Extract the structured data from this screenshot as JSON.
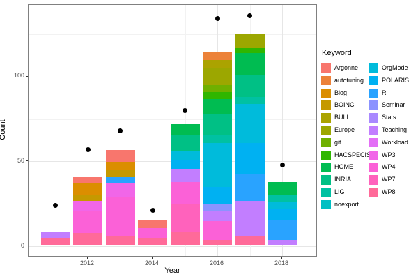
{
  "chart_data": {
    "type": "bar",
    "stacked": true,
    "title": "",
    "xlabel": "Year",
    "ylabel": "Count",
    "legend_title": "Keyword",
    "legend_position": "right",
    "grid": true,
    "x_ticks": [
      2012,
      2014,
      2016,
      2018
    ],
    "x_minor": [
      2011,
      2013,
      2015,
      2017
    ],
    "y_ticks": [
      0,
      50,
      100
    ],
    "y_minor": [
      25,
      75,
      125
    ],
    "xlim": [
      2010.5,
      2018.5
    ],
    "ylim": [
      -7,
      142
    ],
    "keywords": [
      {
        "name": "Argonne",
        "color": "#F8766D"
      },
      {
        "name": "autotuning",
        "color": "#EC8239"
      },
      {
        "name": "Blog",
        "color": "#DB8E00"
      },
      {
        "name": "BOINC",
        "color": "#C59900"
      },
      {
        "name": "BULL",
        "color": "#ABA300"
      },
      {
        "name": "Europe",
        "color": "#9CA700"
      },
      {
        "name": "git",
        "color": "#6FB000"
      },
      {
        "name": "HACSPECIS",
        "color": "#2FB600"
      },
      {
        "name": "HOME",
        "color": "#00BC51"
      },
      {
        "name": "INRIA",
        "color": "#00C085"
      },
      {
        "name": "LIG",
        "color": "#00C1A2"
      },
      {
        "name": "noexport",
        "color": "#00BFC3"
      },
      {
        "name": "OrgMode",
        "color": "#00BBDB"
      },
      {
        "name": "POLARIS",
        "color": "#00B1F2"
      },
      {
        "name": "R",
        "color": "#29A3FF"
      },
      {
        "name": "Seminar",
        "color": "#8B93FF"
      },
      {
        "name": "Stats",
        "color": "#A989FF"
      },
      {
        "name": "Teaching",
        "color": "#C27EFF"
      },
      {
        "name": "Workload",
        "color": "#E36EF6"
      },
      {
        "name": "WP3",
        "color": "#F166E8"
      },
      {
        "name": "WP4",
        "color": "#FB61D7"
      },
      {
        "name": "WP7",
        "color": "#FF62BC"
      },
      {
        "name": "WP8",
        "color": "#FF6A99"
      }
    ],
    "bars": [
      {
        "year": 2011,
        "total": 8,
        "segments": [
          {
            "keyword": "WP8",
            "value": 4
          },
          {
            "keyword": "Teaching",
            "value": 4
          }
        ]
      },
      {
        "year": 2012,
        "total": 40,
        "segments": [
          {
            "keyword": "WP8",
            "value": 7
          },
          {
            "keyword": "WP4",
            "value": 13
          },
          {
            "keyword": "WP3",
            "value": 6
          },
          {
            "keyword": "BOINC",
            "value": 3
          },
          {
            "keyword": "Blog",
            "value": 7
          },
          {
            "keyword": "Argonne",
            "value": 4
          }
        ]
      },
      {
        "year": 2013,
        "total": 56,
        "segments": [
          {
            "keyword": "WP8",
            "value": 5
          },
          {
            "keyword": "WP4",
            "value": 23
          },
          {
            "keyword": "WP3",
            "value": 8
          },
          {
            "keyword": "R",
            "value": 4
          },
          {
            "keyword": "BOINC",
            "value": 4
          },
          {
            "keyword": "Blog",
            "value": 5
          },
          {
            "keyword": "Argonne",
            "value": 7
          }
        ]
      },
      {
        "year": 2014,
        "total": 15,
        "segments": [
          {
            "keyword": "WP8",
            "value": 4
          },
          {
            "keyword": "WP4",
            "value": 6
          },
          {
            "keyword": "Argonne",
            "value": 5
          }
        ]
      },
      {
        "year": 2015,
        "total": 71,
        "segments": [
          {
            "keyword": "WP8",
            "value": 8
          },
          {
            "keyword": "WP7",
            "value": 16
          },
          {
            "keyword": "WP4",
            "value": 13
          },
          {
            "keyword": "Teaching",
            "value": 8
          },
          {
            "keyword": "POLARIS",
            "value": 5
          },
          {
            "keyword": "OrgMode",
            "value": 5
          },
          {
            "keyword": "INRIA",
            "value": 10
          },
          {
            "keyword": "HOME",
            "value": 6
          }
        ]
      },
      {
        "year": 2016,
        "total": 114,
        "segments": [
          {
            "keyword": "WP8",
            "value": 3
          },
          {
            "keyword": "WP4",
            "value": 11
          },
          {
            "keyword": "Teaching",
            "value": 6
          },
          {
            "keyword": "Seminar",
            "value": 4
          },
          {
            "keyword": "POLARIS",
            "value": 10
          },
          {
            "keyword": "OrgMode",
            "value": 26
          },
          {
            "keyword": "LIG",
            "value": 5
          },
          {
            "keyword": "INRIA",
            "value": 12
          },
          {
            "keyword": "HOME",
            "value": 9
          },
          {
            "keyword": "HACSPECIS",
            "value": 4
          },
          {
            "keyword": "git",
            "value": 4
          },
          {
            "keyword": "Europe",
            "value": 10
          },
          {
            "keyword": "BULL",
            "value": 5
          },
          {
            "keyword": "autotuning",
            "value": 5
          }
        ]
      },
      {
        "year": 2017,
        "total": 124,
        "segments": [
          {
            "keyword": "WP8",
            "value": 5
          },
          {
            "keyword": "Teaching",
            "value": 21
          },
          {
            "keyword": "R",
            "value": 16
          },
          {
            "keyword": "POLARIS",
            "value": 18
          },
          {
            "keyword": "OrgMode",
            "value": 23
          },
          {
            "keyword": "LIG",
            "value": 4
          },
          {
            "keyword": "INRIA",
            "value": 13
          },
          {
            "keyword": "HOME",
            "value": 13
          },
          {
            "keyword": "HACSPECIS",
            "value": 3
          },
          {
            "keyword": "Europe",
            "value": 8
          }
        ]
      },
      {
        "year": 2018,
        "total": 37,
        "segments": [
          {
            "keyword": "Teaching",
            "value": 3
          },
          {
            "keyword": "R",
            "value": 12
          },
          {
            "keyword": "POLARIS",
            "value": 6
          },
          {
            "keyword": "OrgMode",
            "value": 4
          },
          {
            "keyword": "LIG",
            "value": 4
          },
          {
            "keyword": "HOME",
            "value": 8
          }
        ]
      }
    ],
    "points": [
      {
        "year": 2011,
        "value": 24
      },
      {
        "year": 2012,
        "value": 57
      },
      {
        "year": 2013,
        "value": 68
      },
      {
        "year": 2014,
        "value": 21
      },
      {
        "year": 2015,
        "value": 80
      },
      {
        "year": 2016,
        "value": 134
      },
      {
        "year": 2017,
        "value": 136
      },
      {
        "year": 2018,
        "value": 48
      }
    ]
  }
}
